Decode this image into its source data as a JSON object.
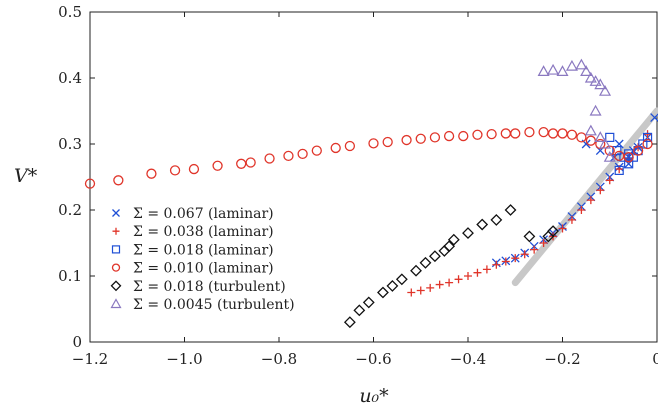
{
  "chart_data": {
    "type": "scatter",
    "xlabel": "u₀*",
    "ylabel": "V*",
    "xlim": [
      -1.2,
      0.0
    ],
    "ylim": [
      0.0,
      0.5
    ],
    "x_ticks": [
      -1.2,
      -1.0,
      -0.8,
      -0.6,
      -0.4,
      -0.2,
      0.0
    ],
    "x_tick_labels": [
      "−1.2",
      "−1.0",
      "−0.8",
      "−0.6",
      "−0.4",
      "−0.2",
      "0"
    ],
    "y_ticks": [
      0.0,
      0.1,
      0.2,
      0.3,
      0.4,
      0.5
    ],
    "y_tick_labels": [
      "0",
      "0.1",
      "0.2",
      "0.3",
      "0.4",
      "0.5"
    ],
    "grid": false,
    "legend_position": "lower-left",
    "series": [
      {
        "name": "Σ = 0.067 (laminar)",
        "marker": "x",
        "color": "#1f4fd6",
        "points": [
          [
            -0.34,
            0.12
          ],
          [
            -0.32,
            0.123
          ],
          [
            -0.3,
            0.127
          ],
          [
            -0.28,
            0.135
          ],
          [
            -0.26,
            0.145
          ],
          [
            -0.24,
            0.155
          ],
          [
            -0.22,
            0.165
          ],
          [
            -0.2,
            0.175
          ],
          [
            -0.18,
            0.19
          ],
          [
            -0.16,
            0.205
          ],
          [
            -0.14,
            0.22
          ],
          [
            -0.12,
            0.235
          ],
          [
            -0.1,
            0.25
          ],
          [
            -0.08,
            0.265
          ],
          [
            -0.06,
            0.28
          ],
          [
            -0.04,
            0.295
          ],
          [
            -0.02,
            0.31
          ],
          [
            -0.005,
            0.34
          ],
          [
            -0.06,
            0.27
          ],
          [
            -0.09,
            0.28
          ],
          [
            -0.12,
            0.29
          ],
          [
            -0.15,
            0.3
          ],
          [
            -0.08,
            0.3
          ],
          [
            -0.05,
            0.29
          ]
        ]
      },
      {
        "name": "Σ = 0.038 (laminar)",
        "marker": "+",
        "color": "#e0352a",
        "points": [
          [
            -0.52,
            0.075
          ],
          [
            -0.5,
            0.078
          ],
          [
            -0.48,
            0.082
          ],
          [
            -0.46,
            0.087
          ],
          [
            -0.44,
            0.09
          ],
          [
            -0.42,
            0.095
          ],
          [
            -0.4,
            0.1
          ],
          [
            -0.38,
            0.105
          ],
          [
            -0.36,
            0.11
          ],
          [
            -0.34,
            0.117
          ],
          [
            -0.32,
            0.122
          ],
          [
            -0.3,
            0.127
          ],
          [
            -0.28,
            0.133
          ],
          [
            -0.26,
            0.14
          ],
          [
            -0.24,
            0.15
          ],
          [
            -0.22,
            0.16
          ],
          [
            -0.2,
            0.172
          ],
          [
            -0.18,
            0.185
          ],
          [
            -0.16,
            0.2
          ],
          [
            -0.14,
            0.215
          ],
          [
            -0.12,
            0.23
          ],
          [
            -0.1,
            0.245
          ],
          [
            -0.08,
            0.262
          ],
          [
            -0.06,
            0.278
          ],
          [
            -0.04,
            0.295
          ],
          [
            -0.02,
            0.315
          ]
        ]
      },
      {
        "name": "Σ = 0.018 (laminar)",
        "marker": "square",
        "color": "#1f4fd6",
        "points": [
          [
            -0.1,
            0.31
          ],
          [
            -0.085,
            0.29
          ],
          [
            -0.07,
            0.28
          ],
          [
            -0.06,
            0.285
          ],
          [
            -0.05,
            0.28
          ],
          [
            -0.04,
            0.29
          ],
          [
            -0.03,
            0.3
          ],
          [
            -0.02,
            0.31
          ],
          [
            -0.08,
            0.26
          ],
          [
            -0.06,
            0.27
          ]
        ]
      },
      {
        "name": "Σ = 0.010 (laminar)",
        "marker": "circle",
        "color": "#e0352a",
        "points": [
          [
            -1.2,
            0.24
          ],
          [
            -1.14,
            0.245
          ],
          [
            -1.07,
            0.255
          ],
          [
            -1.02,
            0.26
          ],
          [
            -0.98,
            0.262
          ],
          [
            -0.93,
            0.267
          ],
          [
            -0.88,
            0.27
          ],
          [
            -0.86,
            0.272
          ],
          [
            -0.82,
            0.278
          ],
          [
            -0.78,
            0.282
          ],
          [
            -0.75,
            0.285
          ],
          [
            -0.72,
            0.29
          ],
          [
            -0.68,
            0.294
          ],
          [
            -0.65,
            0.297
          ],
          [
            -0.6,
            0.301
          ],
          [
            -0.57,
            0.303
          ],
          [
            -0.53,
            0.306
          ],
          [
            -0.5,
            0.308
          ],
          [
            -0.47,
            0.31
          ],
          [
            -0.44,
            0.312
          ],
          [
            -0.41,
            0.312
          ],
          [
            -0.38,
            0.314
          ],
          [
            -0.35,
            0.315
          ],
          [
            -0.32,
            0.316
          ],
          [
            -0.3,
            0.316
          ],
          [
            -0.27,
            0.318
          ],
          [
            -0.24,
            0.318
          ],
          [
            -0.22,
            0.316
          ],
          [
            -0.2,
            0.316
          ],
          [
            -0.18,
            0.314
          ],
          [
            -0.16,
            0.31
          ],
          [
            -0.14,
            0.305
          ],
          [
            -0.12,
            0.3
          ],
          [
            -0.1,
            0.29
          ],
          [
            -0.08,
            0.282
          ],
          [
            -0.06,
            0.28
          ],
          [
            -0.04,
            0.29
          ],
          [
            -0.02,
            0.3
          ]
        ]
      },
      {
        "name": "Σ = 0.018 (turbulent)",
        "marker": "diamond",
        "color": "#111111",
        "points": [
          [
            -0.65,
            0.03
          ],
          [
            -0.63,
            0.048
          ],
          [
            -0.61,
            0.06
          ],
          [
            -0.58,
            0.075
          ],
          [
            -0.56,
            0.085
          ],
          [
            -0.54,
            0.095
          ],
          [
            -0.51,
            0.108
          ],
          [
            -0.49,
            0.12
          ],
          [
            -0.47,
            0.13
          ],
          [
            -0.45,
            0.138
          ],
          [
            -0.44,
            0.145
          ],
          [
            -0.43,
            0.155
          ],
          [
            -0.4,
            0.165
          ],
          [
            -0.37,
            0.178
          ],
          [
            -0.34,
            0.185
          ],
          [
            -0.31,
            0.2
          ],
          [
            -0.27,
            0.16
          ],
          [
            -0.23,
            0.16
          ],
          [
            -0.22,
            0.168
          ]
        ]
      },
      {
        "name": "Σ = 0.0045 (turbulent)",
        "marker": "triangle",
        "color": "#8a78c0",
        "points": [
          [
            -0.24,
            0.41
          ],
          [
            -0.22,
            0.412
          ],
          [
            -0.2,
            0.41
          ],
          [
            -0.18,
            0.418
          ],
          [
            -0.16,
            0.42
          ],
          [
            -0.15,
            0.41
          ],
          [
            -0.14,
            0.4
          ],
          [
            -0.13,
            0.395
          ],
          [
            -0.12,
            0.39
          ],
          [
            -0.11,
            0.38
          ],
          [
            -0.13,
            0.35
          ],
          [
            -0.14,
            0.32
          ],
          [
            -0.12,
            0.31
          ],
          [
            -0.11,
            0.3
          ],
          [
            -0.1,
            0.28
          ]
        ]
      }
    ],
    "reference_line": {
      "color": "#c8c8c8",
      "points": [
        [
          -0.3,
          0.09
        ],
        [
          0.0,
          0.35
        ]
      ]
    }
  }
}
